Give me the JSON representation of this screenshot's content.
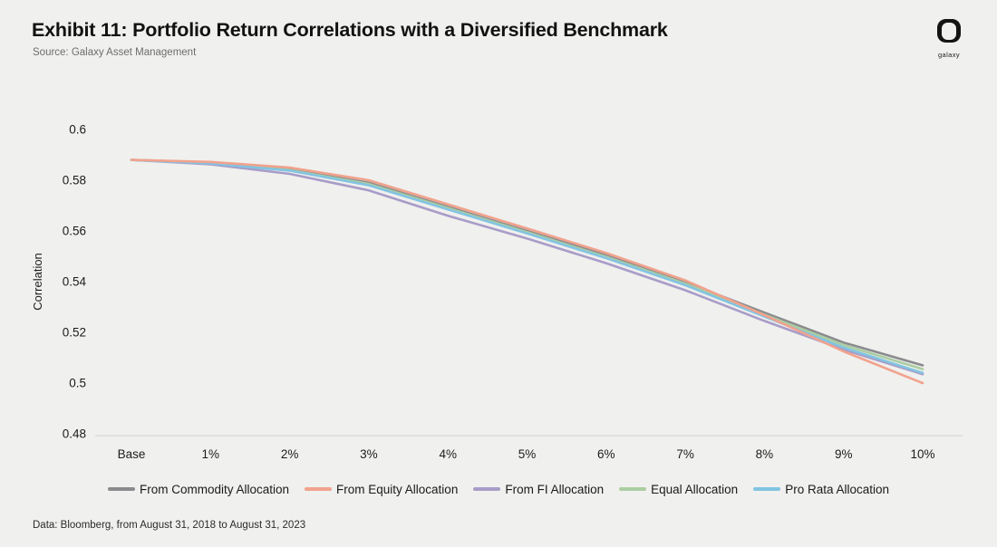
{
  "header": {
    "title": "Exhibit 11: Portfolio Return Correlations with a Diversified Benchmark",
    "source": "Source: Galaxy Asset Management",
    "logo_text": "galaxy"
  },
  "footer": {
    "note": "Data: Bloomberg, from August 31, 2018 to August 31, 2023"
  },
  "chart_data": {
    "type": "line",
    "title": "Exhibit 11: Portfolio Return Correlations with a Diversified Benchmark",
    "xlabel": "",
    "ylabel": "Correlation",
    "categories": [
      "Base",
      "1%",
      "2%",
      "3%",
      "4%",
      "5%",
      "6%",
      "7%",
      "8%",
      "9%",
      "10%"
    ],
    "ylim": [
      0.48,
      0.6
    ],
    "y_ticks": [
      {
        "label": "0.6",
        "value": 0.6
      },
      {
        "label": "0.58",
        "value": 0.58
      },
      {
        "label": "0.56",
        "value": 0.56
      },
      {
        "label": "0.54",
        "value": 0.54
      },
      {
        "label": "0.52",
        "value": 0.52
      },
      {
        "label": "0.5",
        "value": 0.5
      },
      {
        "label": "0.48",
        "value": 0.48
      }
    ],
    "grid": false,
    "legend_position": "bottom",
    "series": [
      {
        "name": "From Commodity Allocation",
        "color": "#8b8b8e",
        "values": [
          0.588,
          0.587,
          0.5843,
          0.579,
          0.5695,
          0.56,
          0.5505,
          0.5398,
          0.5278,
          0.516,
          0.507
        ]
      },
      {
        "name": "From Equity Allocation",
        "color": "#f1a28d",
        "values": [
          0.588,
          0.5872,
          0.585,
          0.58,
          0.5705,
          0.561,
          0.5513,
          0.5405,
          0.5268,
          0.5125,
          0.5
        ]
      },
      {
        "name": "From FI Allocation",
        "color": "#a89cc8",
        "values": [
          0.588,
          0.5863,
          0.5825,
          0.576,
          0.566,
          0.557,
          0.5473,
          0.5366,
          0.5245,
          0.5132,
          0.5035
        ]
      },
      {
        "name": "Equal Allocation",
        "color": "#abcda2",
        "values": [
          0.588,
          0.5868,
          0.584,
          0.5785,
          0.569,
          0.5595,
          0.5498,
          0.5392,
          0.527,
          0.515,
          0.5055
        ]
      },
      {
        "name": "Pro Rata Allocation",
        "color": "#82c4e2",
        "values": [
          0.588,
          0.5866,
          0.5838,
          0.578,
          0.5685,
          0.559,
          0.5493,
          0.5386,
          0.5262,
          0.514,
          0.504
        ]
      }
    ],
    "draw_order": [
      "From Commodity Allocation",
      "From FI Allocation",
      "Equal Allocation",
      "Pro Rata Allocation",
      "From Equity Allocation"
    ]
  }
}
